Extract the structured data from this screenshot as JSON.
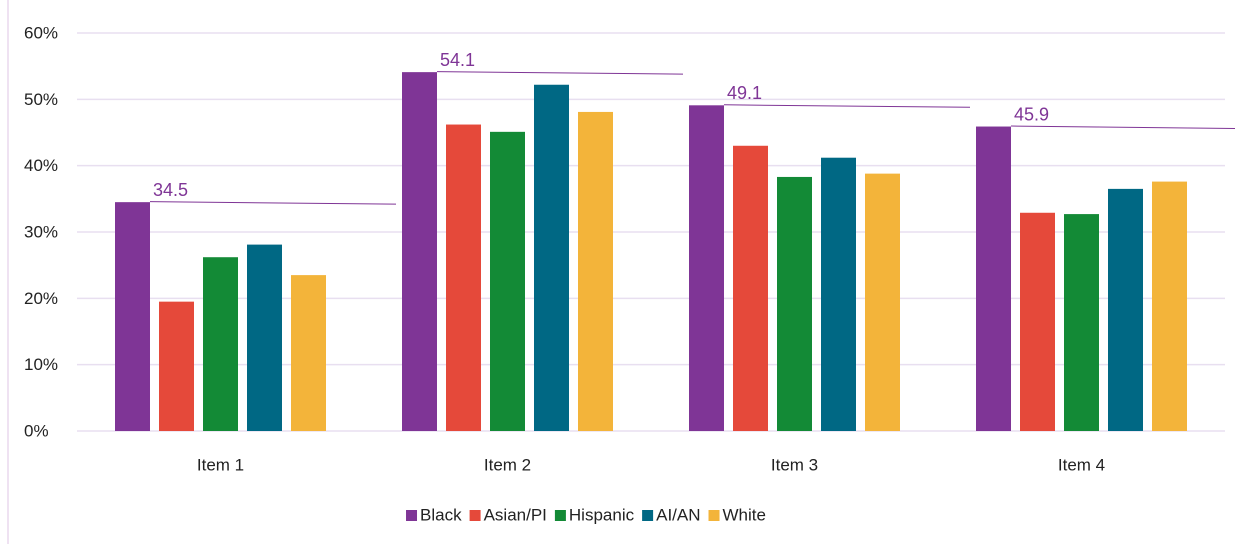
{
  "chart_data": {
    "type": "bar",
    "categories": [
      "Item 1",
      "Item 2",
      "Item 3",
      "Item 4"
    ],
    "series": [
      {
        "name": "Black",
        "color": "#7f3596",
        "values": [
          34.5,
          54.1,
          49.1,
          45.9
        ]
      },
      {
        "name": "Asian/PI",
        "color": "#e5493a",
        "values": [
          19.5,
          46.2,
          43.0,
          32.9
        ]
      },
      {
        "name": "Hispanic",
        "color": "#138a36",
        "values": [
          26.2,
          45.1,
          38.3,
          32.7
        ]
      },
      {
        "name": "AI/AN",
        "color": "#006884",
        "values": [
          28.1,
          52.2,
          41.2,
          36.5
        ]
      },
      {
        "name": "White",
        "color": "#f3b43a",
        "values": [
          23.5,
          48.1,
          38.8,
          37.6
        ]
      }
    ],
    "labeled_series": 0,
    "ylim": [
      0,
      60
    ],
    "yticks": [
      {
        "value": 0,
        "label": "0%"
      },
      {
        "value": 10,
        "label": "10%"
      },
      {
        "value": 20,
        "label": "20%"
      },
      {
        "value": 30,
        "label": "30%"
      },
      {
        "value": 40,
        "label": "40%"
      },
      {
        "value": 50,
        "label": "50%"
      },
      {
        "value": 60,
        "label": "60%"
      }
    ],
    "grid": true,
    "legend": "bottom"
  }
}
